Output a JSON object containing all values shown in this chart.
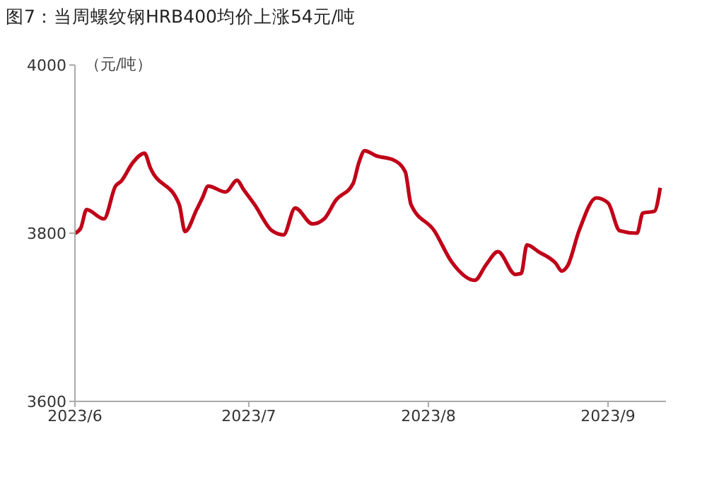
{
  "chart_data": {
    "type": "line",
    "title": "图7：当周螺纹钢HRB400均价上涨54元/吨",
    "ylabel": "（元/吨）",
    "x": [
      "2023-06-01",
      "2023-06-02",
      "2023-06-03",
      "2023-06-06",
      "2023-06-08",
      "2023-06-09",
      "2023-06-11",
      "2023-06-13",
      "2023-06-14",
      "2023-06-19",
      "2023-06-20",
      "2023-06-22",
      "2023-06-23",
      "2023-06-24",
      "2023-06-27",
      "2023-06-29",
      "2023-06-30",
      "2023-07-02",
      "2023-07-05",
      "2023-07-07",
      "2023-07-09",
      "2023-07-12",
      "2023-07-14",
      "2023-07-16",
      "2023-07-19",
      "2023-07-20",
      "2023-07-21",
      "2023-07-23",
      "2023-07-26",
      "2023-07-28",
      "2023-07-29",
      "2023-08-02",
      "2023-08-05",
      "2023-08-09",
      "2023-08-11",
      "2023-08-13",
      "2023-08-16",
      "2023-08-17",
      "2023-08-18",
      "2023-08-20",
      "2023-08-23",
      "2023-08-24",
      "2023-08-25",
      "2023-08-27",
      "2023-08-30",
      "2023-09-01",
      "2023-09-03",
      "2023-09-06",
      "2023-09-07",
      "2023-09-09",
      "2023-09-10"
    ],
    "series": [
      {
        "color": "#c00018",
        "values": [
          3800,
          3806,
          3828,
          3817,
          3856,
          3862,
          3884,
          3895,
          3878,
          3834,
          3802,
          3828,
          3842,
          3856,
          3849,
          3863,
          3853,
          3834,
          3803,
          3798,
          3830,
          3811,
          3817,
          3839,
          3859,
          3884,
          3898,
          3892,
          3887,
          3873,
          3834,
          3803,
          3766,
          3744,
          3763,
          3778,
          3751,
          3752,
          3786,
          3778,
          3764,
          3755,
          3761,
          3803,
          3842,
          3836,
          3803,
          3800,
          3824,
          3826,
          3854
        ]
      }
    ],
    "xlim": [
      "2023-06-01",
      "2023-09-11"
    ],
    "xticks": [
      {
        "value": "2023-06-01",
        "label": "2023/6"
      },
      {
        "value": "2023-07-01",
        "label": "2023/7"
      },
      {
        "value": "2023-08-01",
        "label": "2023/8"
      },
      {
        "value": "2023-09-01",
        "label": "2023/9"
      }
    ],
    "ylim": [
      3600,
      4000
    ],
    "yticks": [
      3600,
      3800,
      4000
    ],
    "grid": false,
    "legend": false,
    "marker": "none",
    "line_style": "solid"
  }
}
